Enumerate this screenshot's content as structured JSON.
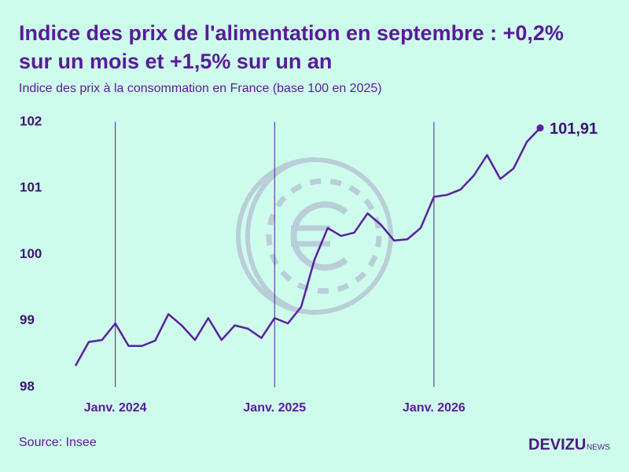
{
  "chart_data": {
    "type": "line",
    "title": "Indice des prix de l'alimentation en septembre : +0,2%",
    "title_line2": "sur un mois et +1,5% sur un an",
    "subtitle": "Indice des prix à la consommation en France (base 100 en 2025)",
    "source": "Source: Insee",
    "brand": "DEVIZU",
    "brand_suffix": "NEWS",
    "x": [
      "2023-10",
      "2023-11",
      "2023-12",
      "2024-01",
      "2024-02",
      "2024-03",
      "2024-04",
      "2024-05",
      "2024-06",
      "2024-07",
      "2024-08",
      "2024-09",
      "2024-10",
      "2024-11",
      "2024-12",
      "2025-01",
      "2025-02",
      "2025-03",
      "2025-04",
      "2025-05",
      "2025-06",
      "2025-07",
      "2025-08",
      "2025-09",
      "2025-10",
      "2025-11",
      "2025-12",
      "2026-01",
      "2026-02",
      "2026-03",
      "2026-04",
      "2026-05",
      "2026-06",
      "2026-07",
      "2026-08",
      "2026-09"
    ],
    "series": [
      {
        "name": "Indice",
        "color": "#5b1f9e",
        "values": [
          98.32,
          98.68,
          98.71,
          98.96,
          98.62,
          98.62,
          98.7,
          99.1,
          98.93,
          98.71,
          99.04,
          98.71,
          98.93,
          98.88,
          98.74,
          99.04,
          98.96,
          99.21,
          99.92,
          100.4,
          100.28,
          100.33,
          100.62,
          100.45,
          100.21,
          100.23,
          100.4,
          100.87,
          100.9,
          100.98,
          101.19,
          101.5,
          101.14,
          101.3,
          101.7,
          101.91
        ],
        "value_labels": [
          null,
          null,
          null,
          null,
          null,
          null,
          null,
          null,
          null,
          null,
          null,
          null,
          null,
          null,
          null,
          null,
          null,
          null,
          null,
          null,
          null,
          null,
          null,
          null,
          null,
          null,
          null,
          null,
          null,
          null,
          null,
          null,
          null,
          null,
          null,
          "101,91"
        ]
      }
    ],
    "xlim": [
      "2023-10",
      "2026-09"
    ],
    "xticks": [
      {
        "value": "2024-01",
        "label": "Janv. 2024"
      },
      {
        "value": "2025-01",
        "label": "Janv. 2025"
      },
      {
        "value": "2026-01",
        "label": "Janv. 2026"
      }
    ],
    "ylim": [
      98,
      102
    ],
    "yticks": [
      98,
      99,
      100,
      101,
      102
    ],
    "grid": true
  }
}
